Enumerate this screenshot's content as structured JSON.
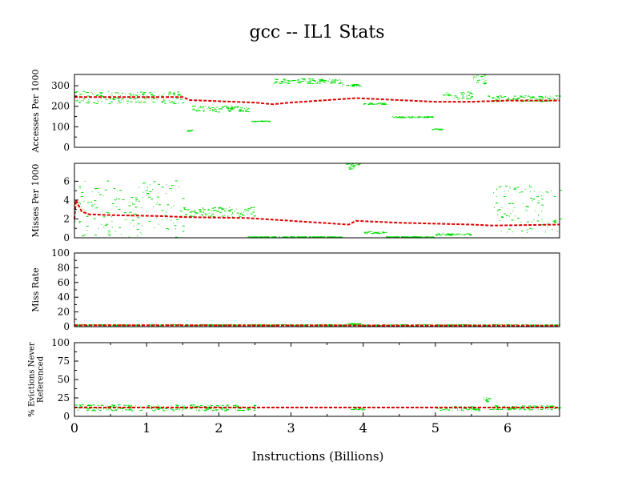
{
  "title": "gcc -- IL1  Stats",
  "xlabel": "Instructions (Billions)",
  "chart_data": [
    {
      "type": "scatter",
      "ylabel": [
        "Accesses Per 1000"
      ],
      "xlim": [
        0,
        6.72
      ],
      "ylim": [
        0,
        355
      ],
      "yticks": [
        0,
        100,
        200,
        300
      ],
      "mean_line": [
        [
          0,
          245
        ],
        [
          1.5,
          245
        ],
        [
          1.6,
          230
        ],
        [
          2.5,
          218
        ],
        [
          2.75,
          210
        ],
        [
          3.0,
          218
        ],
        [
          3.7,
          235
        ],
        [
          3.9,
          240
        ],
        [
          4.2,
          235
        ],
        [
          5.0,
          222
        ],
        [
          5.5,
          222
        ],
        [
          6.0,
          228
        ],
        [
          6.72,
          228
        ]
      ],
      "clusters": [
        [
          0,
          1.5,
          240,
          30
        ],
        [
          1.55,
          1.62,
          80,
          5
        ],
        [
          1.62,
          2.4,
          185,
          15
        ],
        [
          2.45,
          2.7,
          125,
          2
        ],
        [
          2.75,
          3.7,
          320,
          12
        ],
        [
          3.7,
          3.95,
          300,
          5
        ],
        [
          4.0,
          4.3,
          210,
          4
        ],
        [
          4.4,
          4.95,
          145,
          3
        ],
        [
          4.95,
          5.1,
          85,
          3
        ],
        [
          5.1,
          5.5,
          250,
          20
        ],
        [
          5.5,
          5.7,
          330,
          25
        ],
        [
          5.7,
          6.72,
          235,
          15
        ]
      ]
    },
    {
      "type": "scatter",
      "ylabel": [
        "Misses Per 1000"
      ],
      "xlim": [
        0,
        6.72
      ],
      "ylim": [
        0,
        7.9
      ],
      "yticks": [
        0,
        2,
        4,
        6
      ],
      "mean_line": [
        [
          0,
          2.0
        ],
        [
          0.02,
          4.0
        ],
        [
          0.1,
          2.8
        ],
        [
          0.2,
          2.5
        ],
        [
          0.5,
          2.4
        ],
        [
          1.2,
          2.3
        ],
        [
          1.5,
          2.2
        ],
        [
          2.4,
          2.1
        ],
        [
          3.0,
          1.8
        ],
        [
          3.8,
          1.4
        ],
        [
          3.9,
          1.8
        ],
        [
          4.5,
          1.6
        ],
        [
          5.5,
          1.4
        ],
        [
          5.8,
          1.3
        ],
        [
          6.72,
          1.4
        ]
      ],
      "clusters": [
        [
          0,
          1.5,
          3.0,
          3.0
        ],
        [
          1.5,
          2.5,
          2.7,
          0.5
        ],
        [
          2.4,
          3.7,
          0.05,
          0.02
        ],
        [
          3.75,
          3.95,
          7.5,
          0.3
        ],
        [
          4.0,
          4.3,
          0.5,
          0.1
        ],
        [
          4.3,
          5.0,
          0.05,
          0.02
        ],
        [
          5.0,
          5.5,
          0.3,
          0.1
        ],
        [
          5.8,
          6.72,
          3.0,
          2.5
        ]
      ]
    },
    {
      "type": "scatter",
      "ylabel": [
        "Miss Rate"
      ],
      "xlim": [
        0,
        6.72
      ],
      "ylim": [
        0,
        100
      ],
      "yticks": [
        0,
        20,
        40,
        60,
        80,
        100
      ],
      "mean_line": [
        [
          0,
          2
        ],
        [
          6.72,
          1.5
        ]
      ],
      "clusters": [
        [
          0,
          6.72,
          1.5,
          0.8
        ],
        [
          3.75,
          3.95,
          3.5,
          0.3
        ]
      ]
    },
    {
      "type": "scatter",
      "ylabel": [
        "% Evictions Never",
        "Referenced"
      ],
      "xlim": [
        0,
        6.72
      ],
      "ylim": [
        0,
        100
      ],
      "yticks": [
        0,
        25,
        50,
        75,
        100
      ],
      "xticks": [
        0,
        1,
        2,
        3,
        4,
        5,
        6
      ],
      "mean_line": [
        [
          0,
          12
        ],
        [
          6.72,
          12
        ]
      ],
      "clusters": [
        [
          0,
          2.5,
          11,
          4
        ],
        [
          3.8,
          4.0,
          10,
          2
        ],
        [
          5.0,
          5.6,
          10,
          3
        ],
        [
          5.65,
          5.75,
          22,
          3
        ],
        [
          5.75,
          6.72,
          11,
          3
        ]
      ]
    }
  ],
  "colors": {
    "mean": "#dd0000",
    "points": "#00dd00"
  }
}
